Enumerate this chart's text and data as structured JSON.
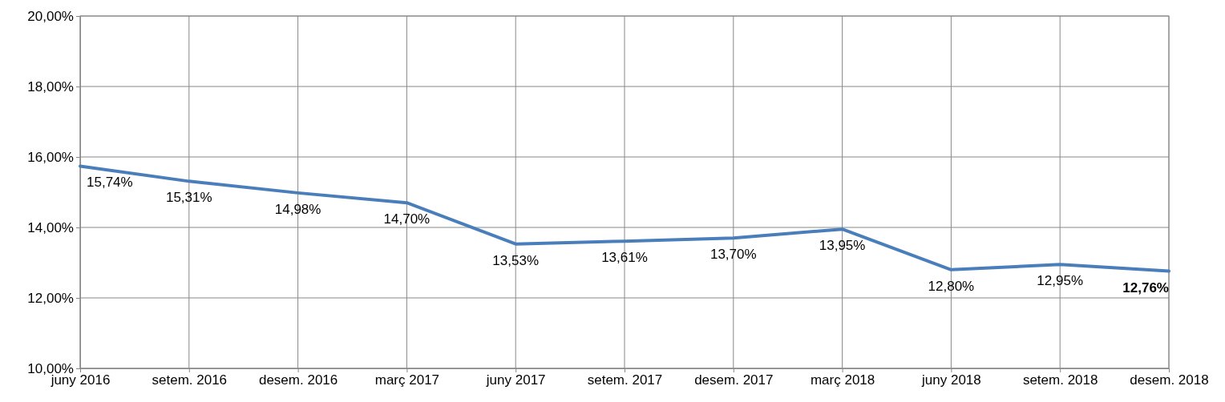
{
  "chart_data": {
    "type": "line",
    "categories": [
      "juny 2016",
      "setem. 2016",
      "desem. 2016",
      "març 2017",
      "juny 2017",
      "setem. 2017",
      "desem. 2017",
      "març 2018",
      "juny 2018",
      "setem. 2018",
      "desem. 2018"
    ],
    "series": [
      {
        "color": "#4a7ebb",
        "values": [
          15.74,
          15.31,
          14.98,
          14.7,
          13.53,
          13.61,
          13.7,
          13.95,
          12.8,
          12.95,
          12.76
        ],
        "value_labels": [
          "15,74%",
          "15,31%",
          "14,98%",
          "14,70%",
          "13,53%",
          "13,61%",
          "13,70%",
          "13,95%",
          "12,80%",
          "12,95%",
          "12,76%"
        ]
      }
    ],
    "ylim": [
      10,
      20
    ],
    "yticks": [
      {
        "value": 10,
        "label": "10,00%"
      },
      {
        "value": 12,
        "label": "12,00%"
      },
      {
        "value": 14,
        "label": "14,00%"
      },
      {
        "value": 16,
        "label": "16,00%"
      },
      {
        "value": 18,
        "label": "18,00%"
      },
      {
        "value": 20,
        "label": "20,00%"
      }
    ],
    "grid": true,
    "marker": "none",
    "line_style": "solid"
  }
}
